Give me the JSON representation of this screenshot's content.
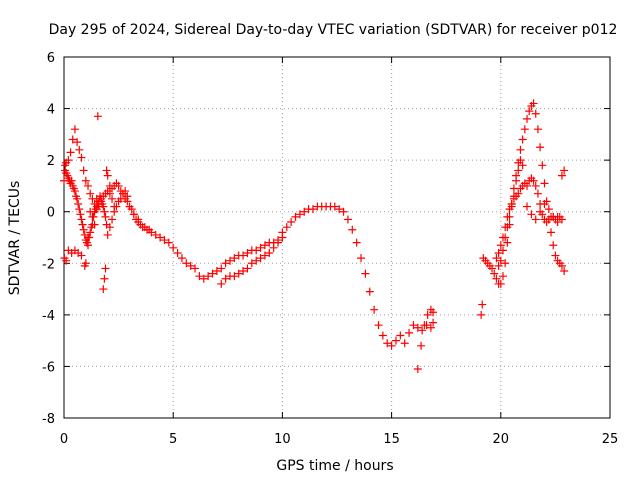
{
  "chart_data": {
    "type": "scatter",
    "title": "Day 295 of 2024, Sidereal Day-to-day VTEC variation (SDTVAR) for receiver p012",
    "xlabel": "GPS time / hours",
    "ylabel": "SDTVAR / TECUs",
    "xlim": [
      0,
      25
    ],
    "ylim": [
      -8,
      6
    ],
    "xticks": [
      "0",
      "5",
      "10",
      "15",
      "20",
      "25"
    ],
    "yticks": [
      "-8",
      "-6",
      "-4",
      "-2",
      "0",
      "2",
      "4",
      "6"
    ],
    "grid": true,
    "marker": "+",
    "color": "#ff0000",
    "series": [
      {
        "name": "SDTVAR",
        "x": [
          0.0,
          0.05,
          0.1,
          0.15,
          0.2,
          0.25,
          0.3,
          0.35,
          0.4,
          0.45,
          0.5,
          0.55,
          0.6,
          0.65,
          0.7,
          0.75,
          0.8,
          0.85,
          0.9,
          0.95,
          1.0,
          1.05,
          1.1,
          1.15,
          1.2,
          1.25,
          1.3,
          1.35,
          1.4,
          1.45,
          1.5,
          1.55,
          1.6,
          1.65,
          1.7,
          1.75,
          1.8,
          1.85,
          1.9,
          1.95,
          2.0,
          2.1,
          2.2,
          2.3,
          2.4,
          2.5,
          2.6,
          2.7,
          2.8,
          2.9,
          3.0,
          3.1,
          3.2,
          3.3,
          3.4,
          3.5,
          3.6,
          3.7,
          3.8,
          3.9,
          4.0,
          4.2,
          4.4,
          4.6,
          4.8,
          5.0,
          5.2,
          5.4,
          5.6,
          5.8,
          6.0,
          6.2,
          6.4,
          6.6,
          6.8,
          7.0,
          7.2,
          7.4,
          7.6,
          7.8,
          8.0,
          8.2,
          8.4,
          8.6,
          8.8,
          9.0,
          9.2,
          9.4,
          9.6,
          9.8,
          10.0,
          10.2,
          10.4,
          10.6,
          10.8,
          11.0,
          11.2,
          11.4,
          11.6,
          11.8,
          12.0,
          12.2,
          12.4,
          12.6,
          12.8,
          13.0,
          13.2,
          13.4,
          13.6,
          13.8,
          14.0,
          14.2,
          14.4,
          14.6,
          14.8,
          15.0,
          15.2,
          15.4,
          15.6,
          15.8,
          16.0,
          16.2,
          16.4,
          16.6,
          16.8,
          16.9,
          0.05,
          0.1,
          0.2,
          0.3,
          0.4,
          0.5,
          0.6,
          0.7,
          0.8,
          0.9,
          1.0,
          1.1,
          1.2,
          1.3,
          1.4,
          1.5,
          1.6,
          1.7,
          1.8,
          1.9,
          2.0,
          2.1,
          2.2,
          2.3,
          2.4,
          2.5,
          2.6,
          2.7,
          2.8,
          2.9,
          3.0,
          3.2,
          3.4,
          0.02,
          0.1,
          0.2,
          0.35,
          0.5,
          0.65,
          0.8,
          0.95,
          1.0,
          1.1,
          1.2,
          1.3,
          1.4,
          1.5,
          1.55,
          1.8,
          1.85,
          1.9,
          1.95,
          2.0,
          2.1,
          2.2,
          2.3,
          7.2,
          7.4,
          7.6,
          7.8,
          8.0,
          8.2,
          8.4,
          8.6,
          8.8,
          9.0,
          9.2,
          9.4,
          9.6,
          9.8,
          10.0,
          16.2,
          16.35,
          16.5,
          16.65,
          16.8,
          16.9,
          19.1,
          19.15,
          19.2,
          19.3,
          19.4,
          19.5,
          19.6,
          19.7,
          19.8,
          19.9,
          20.0,
          20.1,
          20.2,
          20.3,
          20.4,
          20.5,
          20.6,
          20.7,
          20.8,
          20.9,
          21.0,
          21.1,
          21.2,
          21.3,
          21.4,
          21.5,
          21.6,
          21.7,
          21.8,
          21.9,
          22.0,
          22.1,
          22.2,
          22.3,
          22.4,
          22.5,
          22.6,
          22.7,
          22.8,
          22.9,
          19.8,
          19.9,
          20.0,
          20.1,
          20.2,
          20.3,
          20.4,
          20.5,
          20.6,
          20.7,
          20.8,
          20.9,
          21.0,
          21.1,
          21.2,
          21.3,
          21.4,
          21.5,
          21.6,
          21.7,
          21.8,
          21.9,
          22.0,
          22.1,
          22.2,
          22.3,
          22.4,
          22.5,
          22.6,
          22.7,
          22.8,
          22.9,
          19.9,
          20.0,
          20.1,
          20.2,
          20.3,
          20.4,
          20.5,
          20.6,
          20.7,
          20.8,
          20.9,
          21.0,
          21.2,
          21.4,
          21.6,
          21.8,
          22.0,
          22.2,
          22.4,
          22.6,
          22.8
        ],
        "y": [
          1.2,
          1.6,
          1.5,
          1.4,
          1.3,
          1.2,
          1.1,
          1.2,
          1.0,
          0.9,
          0.8,
          0.6,
          0.5,
          0.3,
          0.1,
          -0.1,
          -0.3,
          -0.5,
          -0.7,
          -0.9,
          -1.1,
          -1.2,
          -1.3,
          -1.0,
          -0.8,
          -0.6,
          -0.5,
          -0.2,
          0.0,
          0.1,
          0.2,
          0.3,
          0.4,
          0.6,
          0.5,
          0.3,
          0.2,
          0.0,
          -0.2,
          -0.5,
          -0.9,
          -0.6,
          -0.3,
          0.0,
          0.2,
          0.4,
          0.5,
          0.7,
          0.8,
          0.6,
          0.2,
          0.1,
          -0.1,
          -0.3,
          -0.4,
          -0.5,
          -0.6,
          -0.6,
          -0.7,
          -0.7,
          -0.8,
          -0.9,
          -1.0,
          -1.1,
          -1.2,
          -1.4,
          -1.6,
          -1.8,
          -2.0,
          -2.1,
          -2.2,
          -2.5,
          -2.6,
          -2.5,
          -2.4,
          -2.3,
          -2.2,
          -2.0,
          -1.9,
          -1.8,
          -1.7,
          -1.7,
          -1.6,
          -1.5,
          -1.5,
          -1.4,
          -1.3,
          -1.2,
          -1.2,
          -1.1,
          -0.8,
          -0.6,
          -0.4,
          -0.2,
          -0.1,
          0.0,
          0.1,
          0.1,
          0.2,
          0.2,
          0.2,
          0.2,
          0.2,
          0.1,
          0.0,
          -0.3,
          -0.7,
          -1.2,
          -1.8,
          -2.4,
          -3.1,
          -3.8,
          -4.4,
          -4.8,
          -5.1,
          -5.2,
          -5.0,
          -4.8,
          -5.1,
          -4.7,
          -4.4,
          -4.5,
          -4.6,
          -4.4,
          -4.5,
          -4.3,
          1.8,
          1.9,
          2.0,
          2.3,
          2.8,
          3.2,
          2.7,
          2.4,
          2.1,
          1.6,
          1.2,
          1.0,
          0.7,
          0.5,
          0.3,
          0.1,
          0.2,
          0.4,
          0.6,
          0.7,
          0.8,
          0.7,
          0.9,
          1.0,
          1.1,
          1.0,
          0.8,
          0.7,
          0.5,
          0.4,
          0.2,
          -0.1,
          -0.3,
          -1.8,
          -1.9,
          -1.5,
          -1.6,
          -1.5,
          -1.6,
          -1.7,
          -2.1,
          -2.0,
          -1.0,
          0.0,
          -0.2,
          -0.5,
          0.5,
          3.7,
          -3.0,
          -2.6,
          -2.2,
          1.6,
          1.4,
          1.0,
          0.5,
          0.2,
          -2.8,
          -2.6,
          -2.5,
          -2.5,
          -2.4,
          -2.3,
          -2.2,
          -2.0,
          -1.9,
          -1.8,
          -1.7,
          -1.6,
          -1.4,
          -1.2,
          -1.0,
          -6.1,
          -5.2,
          -4.4,
          -4.0,
          -3.8,
          -3.9,
          -4.0,
          -3.6,
          -1.8,
          -1.9,
          -2.0,
          -2.1,
          -2.2,
          -2.4,
          -2.6,
          -2.8,
          -2.8,
          -2.5,
          -2.0,
          -1.2,
          -0.5,
          0.3,
          0.9,
          1.4,
          1.9,
          2.4,
          2.8,
          3.2,
          3.6,
          3.9,
          4.1,
          4.2,
          3.8,
          3.2,
          2.5,
          1.8,
          1.1,
          0.4,
          -0.3,
          -0.8,
          -1.3,
          -1.7,
          -1.9,
          -2.0,
          -2.1,
          -2.3,
          -1.8,
          -1.6,
          -1.3,
          -1.0,
          -0.6,
          -0.2,
          0.1,
          0.3,
          0.5,
          0.6,
          0.7,
          0.9,
          1.0,
          1.1,
          1.0,
          1.2,
          1.3,
          1.2,
          1.0,
          0.7,
          0.3,
          -0.1,
          -0.3,
          -0.4,
          -0.3,
          -0.2,
          -0.2,
          -0.3,
          -0.2,
          -0.2,
          1.4,
          1.6,
          -2.1,
          -1.9,
          -1.5,
          -1.0,
          -0.6,
          -0.2,
          0.2,
          0.6,
          1.2,
          1.6,
          2.0,
          1.8,
          0.2,
          -0.1,
          -0.3,
          0.0,
          0.3,
          0.1,
          -0.2,
          -0.4,
          -0.3
        ]
      }
    ]
  }
}
